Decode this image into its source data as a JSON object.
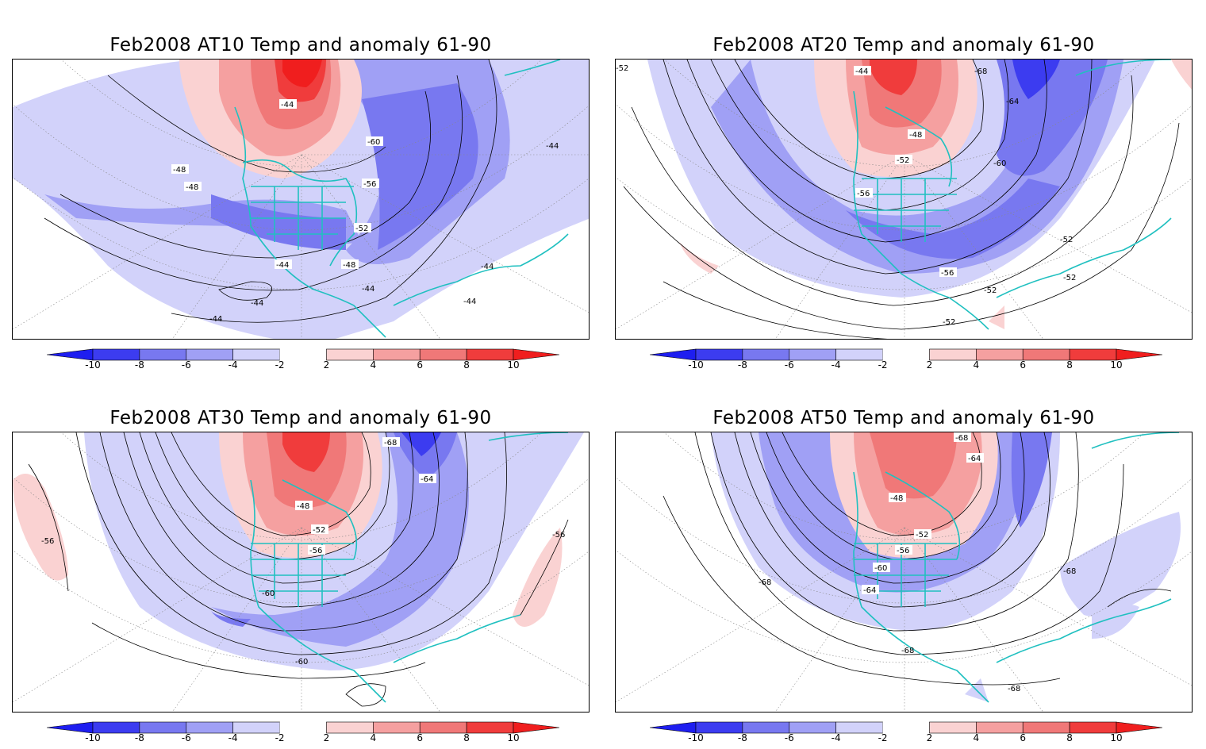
{
  "figure": {
    "panels": [
      {
        "title": "Feb2008 AT10 Temp and anomaly 61-90",
        "contour_labels": [
          "-44",
          "-60",
          "-44",
          "-48",
          "-48",
          "-56",
          "-52",
          "-44",
          "-48",
          "-44",
          "-44",
          "-44",
          "-44",
          "-44"
        ]
      },
      {
        "title": "Feb2008 AT20 Temp and anomaly 61-90",
        "contour_labels": [
          "-44",
          "-68",
          "-64",
          "-48",
          "-52",
          "-60",
          "-56",
          "-52",
          "-56",
          "-52",
          "-52",
          "-52",
          "-52"
        ]
      },
      {
        "title": "Feb2008 AT30 Temp and anomaly 61-90",
        "contour_labels": [
          "-68",
          "-64",
          "-48",
          "-52",
          "-56",
          "-56",
          "-60",
          "-56",
          "-60"
        ]
      },
      {
        "title": "Feb2008 AT50 Temp and anomaly 61-90",
        "contour_labels": [
          "-68",
          "-64",
          "-48",
          "-52",
          "-56",
          "-60",
          "-64",
          "-68",
          "-68",
          "-68",
          "-68"
        ]
      }
    ],
    "colorbar": {
      "ticks": [
        "-10",
        "-8",
        "-6",
        "-4",
        "-2",
        "2",
        "4",
        "6",
        "8",
        "10"
      ],
      "colors": [
        "#1e1ef0",
        "#3c3cf0",
        "#7878f0",
        "#a0a0f5",
        "#d2d2fa",
        "#ffffff",
        "#fad2d2",
        "#f5a0a0",
        "#f07878",
        "#f03c3c",
        "#f01e1e"
      ]
    },
    "colors": {
      "coastline": "#20c0c0",
      "contour": "#000000",
      "warm_strong": "#ff2020",
      "cold_strong": "#2828f0"
    }
  }
}
